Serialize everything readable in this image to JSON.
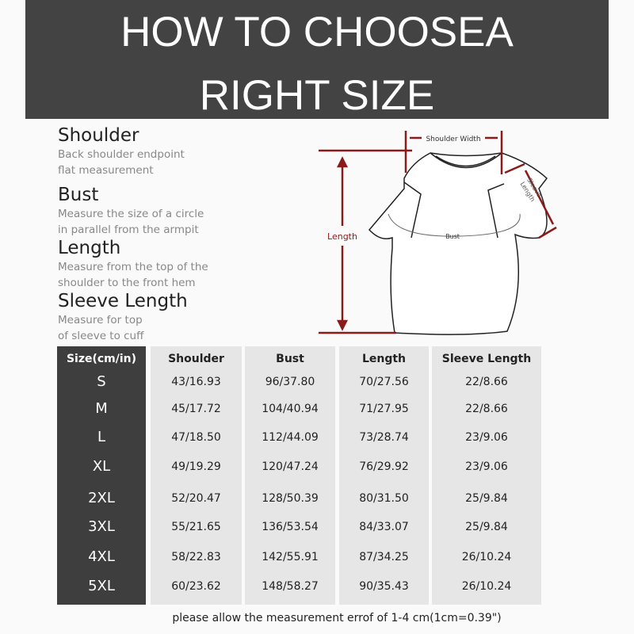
{
  "title": {
    "line1": "HOW TO CHOOSEA",
    "line2": "RIGHT SIZE"
  },
  "definitions": [
    {
      "term": "Shoulder",
      "desc1": "Back shoulder endpoint",
      "desc2": "flat measurement"
    },
    {
      "term": "Bust",
      "desc1": "Measure the size of a circle",
      "desc2": "in parallel from the armpit"
    },
    {
      "term": "Length",
      "desc1": "Measure from the top of the",
      "desc2": "shoulder to the front hem"
    },
    {
      "term": "Sleeve Length",
      "desc1": "Measure for top",
      "desc2": "of sleeve to cuff"
    }
  ],
  "diagram": {
    "shoulder_width": "Shoulder Width",
    "sleeve1": "Sleeve",
    "sleeve2": "Length",
    "length": "Length",
    "bust": "Bust",
    "accent": "#8b1a1a"
  },
  "table": {
    "headers": [
      "Size(cm/in)",
      "Shoulder",
      "Bust",
      "Length",
      "Sleeve Length"
    ],
    "rows": [
      [
        "S",
        "43/16.93",
        "96/37.80",
        "70/27.56",
        "22/8.66"
      ],
      [
        "M",
        "45/17.72",
        "104/40.94",
        "71/27.95",
        "22/8.66"
      ],
      [
        "L",
        "47/18.50",
        "112/44.09",
        "73/28.74",
        "23/9.06"
      ],
      [
        "XL",
        "49/19.29",
        "120/47.24",
        "76/29.92",
        "23/9.06"
      ],
      [
        "2XL",
        "52/20.47",
        "128/50.39",
        "80/31.50",
        "25/9.84"
      ],
      [
        "3XL",
        "55/21.65",
        "136/53.54",
        "84/33.07",
        "25/9.84"
      ],
      [
        "4XL",
        "58/22.83",
        "142/55.91",
        "87/34.25",
        "26/10.24"
      ],
      [
        "5XL",
        "60/23.62",
        "148/58.27",
        "90/35.43",
        "26/10.24"
      ]
    ]
  },
  "note": "please allow the measurement errof of 1-4 cm(1cm=0.39\")"
}
